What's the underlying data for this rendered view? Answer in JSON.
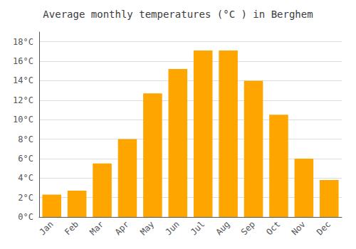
{
  "chart_data": {
    "type": "bar",
    "title": "Average monthly temperatures (°C ) in Berghem",
    "categories": [
      "Jan",
      "Feb",
      "Mar",
      "Apr",
      "May",
      "Jun",
      "Jul",
      "Aug",
      "Sep",
      "Oct",
      "Nov",
      "Dec"
    ],
    "values": [
      2.3,
      2.7,
      5.5,
      8.0,
      12.7,
      15.2,
      17.1,
      17.1,
      14.0,
      10.5,
      6.0,
      3.8
    ],
    "color": "#FFA500",
    "ylim": [
      0,
      19
    ],
    "yticks": [
      {
        "value": 0,
        "label": "0°C"
      },
      {
        "value": 2,
        "label": "2°C"
      },
      {
        "value": 4,
        "label": "4°C"
      },
      {
        "value": 6,
        "label": "6°C"
      },
      {
        "value": 8,
        "label": "8°C"
      },
      {
        "value": 10,
        "label": "10°C"
      },
      {
        "value": 12,
        "label": "12°C"
      },
      {
        "value": 14,
        "label": "14°C"
      },
      {
        "value": 16,
        "label": "16°C"
      },
      {
        "value": 18,
        "label": "18°C"
      }
    ],
    "grid": true
  }
}
